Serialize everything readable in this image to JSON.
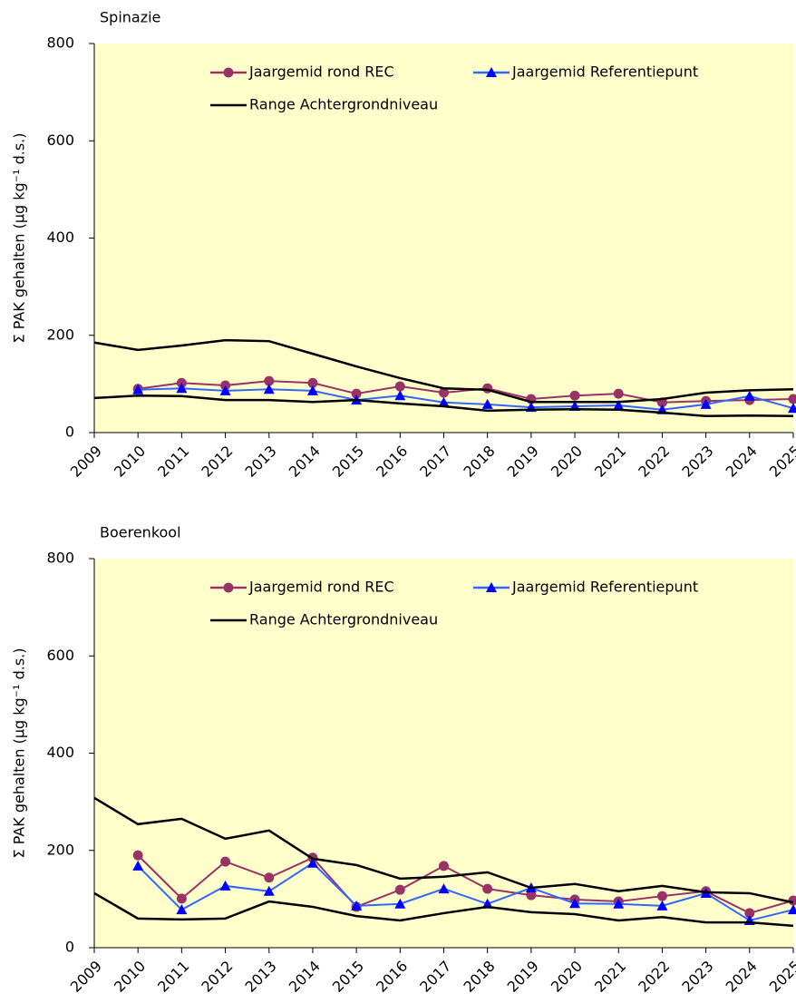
{
  "chart_data": [
    {
      "type": "line",
      "title": "Spinazie",
      "y_label": "Σ PAK gehalten (μg kg⁻¹ d.s.)",
      "categories": [
        "2009",
        "2010",
        "2011",
        "2012",
        "2013",
        "2014",
        "2015",
        "2016",
        "2017",
        "2018",
        "2019",
        "2020",
        "2021",
        "2022",
        "2023",
        "2024",
        "2025"
      ],
      "ylim": [
        0,
        800
      ],
      "yticks": [
        0,
        200,
        400,
        600,
        800
      ],
      "background": "#ffffcc",
      "series": [
        {
          "name": "Jaargemid rond REC",
          "color": "#993366",
          "marker": "circle",
          "values": [
            null,
            90,
            102,
            97,
            106,
            102,
            80,
            95,
            82,
            91,
            69,
            76,
            80,
            62,
            65,
            67,
            69
          ]
        },
        {
          "name": "Jaargemid Referentiepunt",
          "color": "#3366ff",
          "marker": "triangle",
          "values": [
            null,
            88,
            91,
            86,
            89,
            86,
            67,
            76,
            62,
            58,
            52,
            54,
            56,
            47,
            58,
            75,
            50
          ]
        },
        {
          "name": "Range Achtergrondniveau",
          "color": "#000000",
          "upper": [
            185,
            170,
            179,
            190,
            188,
            162,
            136,
            112,
            91,
            88,
            63,
            63,
            63,
            69,
            82,
            87,
            89
          ],
          "lower": [
            71,
            76,
            75,
            67,
            67,
            63,
            67,
            60,
            54,
            45,
            47,
            48,
            47,
            41,
            34,
            35,
            34
          ]
        }
      ]
    },
    {
      "type": "line",
      "title": "Boerenkool",
      "y_label": "Σ PAK gehalten (μg kg⁻¹ d.s.)",
      "categories": [
        "2009",
        "2010",
        "2011",
        "2012",
        "2013",
        "2014",
        "2015",
        "2016",
        "2017",
        "2018",
        "2019",
        "2020",
        "2021",
        "2022",
        "2023",
        "2024",
        "2025"
      ],
      "ylim": [
        0,
        800
      ],
      "yticks": [
        0,
        200,
        400,
        600,
        800
      ],
      "background": "#ffffcc",
      "series": [
        {
          "name": "Jaargemid rond REC",
          "color": "#993366",
          "marker": "circle",
          "values": [
            null,
            190,
            101,
            177,
            144,
            185,
            84,
            119,
            168,
            121,
            108,
            99,
            95,
            106,
            116,
            71,
            97
          ]
        },
        {
          "name": "Jaargemid Referentiepunt",
          "color": "#3366ff",
          "marker": "triangle",
          "values": [
            null,
            168,
            78,
            127,
            116,
            174,
            86,
            90,
            121,
            90,
            123,
            91,
            90,
            86,
            112,
            56,
            78
          ]
        },
        {
          "name": "Range Achtergrondniveau",
          "color": "#000000",
          "upper": [
            308,
            254,
            265,
            224,
            241,
            183,
            170,
            142,
            146,
            155,
            123,
            131,
            116,
            127,
            114,
            112,
            93
          ],
          "lower": [
            112,
            60,
            58,
            60,
            95,
            84,
            65,
            56,
            71,
            84,
            73,
            69,
            56,
            63,
            52,
            52,
            45
          ]
        }
      ]
    }
  ]
}
